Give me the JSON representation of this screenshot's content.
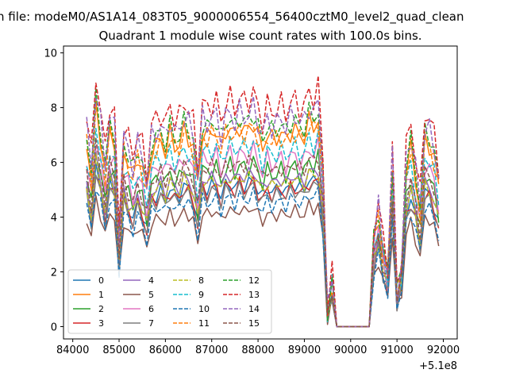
{
  "figure": {
    "suptitle": "n file: modeM0/AS1A14_083T05_9000006554_56400cztM0_level2_quad_clean",
    "offset_label": "+5.1e8"
  },
  "chart_data": {
    "type": "line",
    "title": "Quadrant 1 module wise count rates with 100.0s bins.",
    "xlabel": "",
    "ylabel": "",
    "x_ticks": [
      84000,
      85000,
      86000,
      87000,
      88000,
      89000,
      90000,
      91000,
      92000
    ],
    "y_ticks": [
      0,
      2,
      4,
      6,
      8,
      10
    ],
    "xlim": [
      83800,
      92300
    ],
    "ylim": [
      -0.45,
      10.25
    ],
    "grid": false,
    "legend": {
      "placement": "lower-left",
      "columns": 4
    },
    "x_segments": [
      [
        84300,
        89500
      ],
      [
        89700,
        90400
      ],
      [
        90500,
        91900
      ]
    ],
    "profile": [
      [
        84300,
        1.0
      ],
      [
        84400,
        0.8
      ],
      [
        84500,
        1.18
      ],
      [
        84600,
        1.02
      ],
      [
        84700,
        0.82
      ],
      [
        84800,
        1.05
      ],
      [
        84900,
        1.0
      ],
      [
        85000,
        0.45
      ],
      [
        85100,
        0.95
      ],
      [
        85200,
        0.88
      ],
      [
        85300,
        0.8
      ],
      [
        85400,
        0.92
      ],
      [
        85500,
        0.85
      ],
      [
        85600,
        0.72
      ],
      [
        85700,
        0.95
      ],
      [
        85800,
        0.97
      ],
      [
        85900,
        1.0
      ],
      [
        86000,
        0.95
      ],
      [
        86100,
        1.03
      ],
      [
        86200,
        0.97
      ],
      [
        86300,
        0.98
      ],
      [
        86400,
        1.05
      ],
      [
        86500,
        1.02
      ],
      [
        86600,
        0.96
      ],
      [
        86700,
        0.76
      ],
      [
        86800,
        1.05
      ],
      [
        86900,
        1.02
      ],
      [
        87000,
        1.04
      ],
      [
        87100,
        1.06
      ],
      [
        87200,
        0.96
      ],
      [
        87300,
        1.05
      ],
      [
        87400,
        1.07
      ],
      [
        87500,
        1.02
      ],
      [
        87600,
        1.08
      ],
      [
        87700,
        1.05
      ],
      [
        87800,
        1.06
      ],
      [
        87900,
        1.1
      ],
      [
        88000,
        1.02
      ],
      [
        88100,
        0.96
      ],
      [
        88200,
        1.04
      ],
      [
        88300,
        1.0
      ],
      [
        88400,
        1.02
      ],
      [
        88500,
        1.04
      ],
      [
        88600,
        1.0
      ],
      [
        88700,
        1.05
      ],
      [
        88800,
        1.06
      ],
      [
        88900,
        1.02
      ],
      [
        89000,
        1.03
      ],
      [
        89100,
        1.1
      ],
      [
        89200,
        1.07
      ],
      [
        89300,
        1.12
      ],
      [
        89400,
        0.8
      ],
      [
        89500,
        0.08
      ],
      [
        89600,
        0.25
      ],
      [
        89700,
        0.0
      ],
      [
        89800,
        0.0
      ],
      [
        89900,
        0.0
      ],
      [
        90000,
        0.0
      ],
      [
        90100,
        0.0
      ],
      [
        90200,
        0.0
      ],
      [
        90300,
        0.0
      ],
      [
        90400,
        0.0
      ],
      [
        90500,
        0.45
      ],
      [
        90600,
        0.6
      ],
      [
        90700,
        0.4
      ],
      [
        90800,
        0.28
      ],
      [
        90900,
        0.85
      ],
      [
        91000,
        0.18
      ],
      [
        91100,
        0.3
      ],
      [
        91200,
        0.85
      ],
      [
        91300,
        0.95
      ],
      [
        91400,
        0.8
      ],
      [
        91500,
        0.62
      ],
      [
        91600,
        1.0
      ],
      [
        91700,
        0.98
      ],
      [
        91800,
        0.9
      ],
      [
        91900,
        0.75
      ]
    ],
    "series": [
      {
        "name": "0",
        "color": "#1f77b4",
        "dash": "solid",
        "level": 4.9
      },
      {
        "name": "1",
        "color": "#ff7f0e",
        "dash": "solid",
        "level": 6.8
      },
      {
        "name": "2",
        "color": "#2ca02c",
        "dash": "solid",
        "level": 5.5
      },
      {
        "name": "3",
        "color": "#d62728",
        "dash": "solid",
        "level": 4.8
      },
      {
        "name": "4",
        "color": "#9467bd",
        "dash": "solid",
        "level": 5.2
      },
      {
        "name": "5",
        "color": "#8c564b",
        "dash": "solid",
        "level": 4.0
      },
      {
        "name": "6",
        "color": "#e377c2",
        "dash": "solid",
        "level": 5.9
      },
      {
        "name": "7",
        "color": "#7f7f7f",
        "dash": "solid",
        "level": 4.7
      },
      {
        "name": "8",
        "color": "#bcbd22",
        "dash": "dashed",
        "level": 5.1
      },
      {
        "name": "9",
        "color": "#17becf",
        "dash": "dashed",
        "level": 6.2
      },
      {
        "name": "10",
        "color": "#1f77b4",
        "dash": "dashed",
        "level": 4.4
      },
      {
        "name": "11",
        "color": "#ff7f0e",
        "dash": "dashed",
        "level": 6.7
      },
      {
        "name": "12",
        "color": "#2ca02c",
        "dash": "dashed",
        "level": 7.1
      },
      {
        "name": "13",
        "color": "#d62728",
        "dash": "dashed",
        "level": 7.8
      },
      {
        "name": "14",
        "color": "#9467bd",
        "dash": "dashed",
        "level": 7.3
      },
      {
        "name": "15",
        "color": "#8c564b",
        "dash": "dashed",
        "level": 5.6
      }
    ]
  }
}
